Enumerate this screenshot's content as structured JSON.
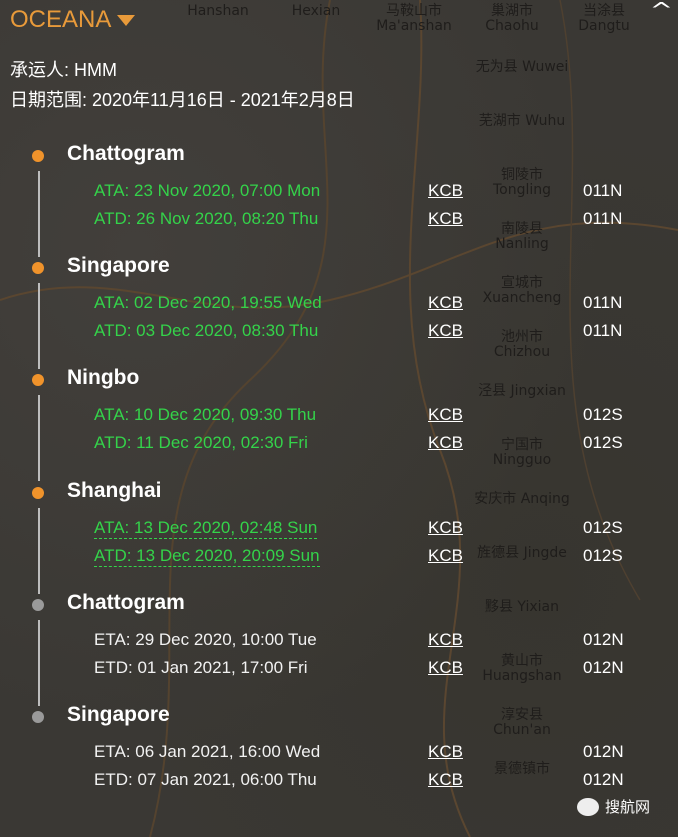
{
  "header": {
    "brand": "OCEANA",
    "carrier": "承运人: HMM",
    "date_range": "日期范围: 2020年11月16日 - 2021年2月8日"
  },
  "colors": {
    "brand": "#e89a3a",
    "actual": "#34d34a",
    "past_dot": "#f0932b",
    "future_dot": "#9a9a9a"
  },
  "ports": [
    {
      "name": "Chattogram",
      "status": "past",
      "events": [
        {
          "text": "ATA: 23 Nov 2020, 07:00 Mon",
          "kind": "actual",
          "service": "KCB",
          "voyage": "011N"
        },
        {
          "text": "ATD: 26 Nov 2020, 08:20 Thu",
          "kind": "actual",
          "service": "KCB",
          "voyage": "011N"
        }
      ]
    },
    {
      "name": "Singapore",
      "status": "past",
      "events": [
        {
          "text": "ATA: 02 Dec 2020, 19:55 Wed",
          "kind": "actual",
          "service": "KCB",
          "voyage": "011N"
        },
        {
          "text": "ATD: 03 Dec 2020, 08:30 Thu",
          "kind": "actual",
          "service": "KCB",
          "voyage": "011N"
        }
      ]
    },
    {
      "name": "Ningbo",
      "status": "past",
      "events": [
        {
          "text": "ATA: 10 Dec 2020, 09:30 Thu",
          "kind": "actual",
          "service": "KCB",
          "voyage": "012S"
        },
        {
          "text": "ATD: 11 Dec 2020, 02:30 Fri",
          "kind": "actual",
          "service": "KCB",
          "voyage": "012S"
        }
      ]
    },
    {
      "name": "Shanghai",
      "status": "past",
      "events": [
        {
          "text": "ATA: 13 Dec 2020, 02:48 Sun",
          "kind": "actual",
          "service": "KCB",
          "voyage": "012S"
        },
        {
          "text": "ATD: 13 Dec 2020, 20:09 Sun",
          "kind": "actual",
          "service": "KCB",
          "voyage": "012S"
        }
      ]
    },
    {
      "name": "Chattogram",
      "status": "future",
      "events": [
        {
          "text": "ETA: 29 Dec 2020, 10:00 Tue",
          "kind": "est",
          "service": "KCB",
          "voyage": "012N"
        },
        {
          "text": "ETD: 01 Jan 2021, 17:00 Fri",
          "kind": "est",
          "service": "KCB",
          "voyage": "012N"
        }
      ]
    },
    {
      "name": "Singapore",
      "status": "future",
      "events": [
        {
          "text": "ETA: 06 Jan 2021, 16:00 Wed",
          "kind": "est",
          "service": "KCB",
          "voyage": "012N"
        },
        {
          "text": "ETD: 07 Jan 2021, 06:00 Thu",
          "kind": "est",
          "service": "KCB",
          "voyage": "012N"
        }
      ]
    }
  ],
  "map_labels": [
    "Hanshan",
    "Hexian",
    "马鞍山市 Ma'anshan",
    "巢湖市 Chaohu",
    "当涂县 Dangtu",
    "无为县 Wuwei",
    "芜湖市 Wuhu",
    "铜陵市 Tongling",
    "南陵县 Nanling",
    "宣城市 Xuancheng",
    "池州市 Chizhou",
    "泾县 Jingxian",
    "宁国市 Ningguo",
    "安庆市 Anqing",
    "旌德县 Jingde",
    "黟县 Yixian",
    "黄山市 Huangshan",
    "淳安县 Chun'an",
    "景德镇市"
  ],
  "watermark": "搜航网"
}
